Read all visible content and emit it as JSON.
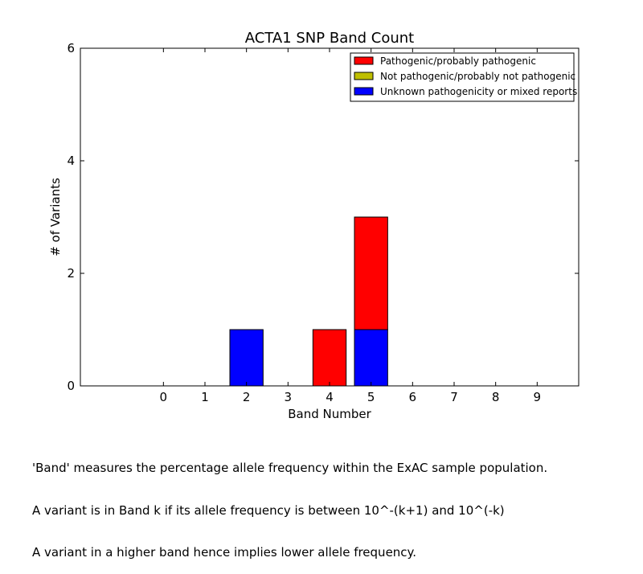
{
  "chart_data": {
    "type": "bar",
    "stacked": true,
    "title": "ACTA1 SNP Band Count",
    "xlabel": "Band Number",
    "ylabel": "# of Variants",
    "categories": [
      "0",
      "1",
      "2",
      "3",
      "4",
      "5",
      "6",
      "7",
      "8",
      "9"
    ],
    "xlim": [
      -2,
      10
    ],
    "ylim": [
      0,
      6
    ],
    "yticks": [
      "0",
      "2",
      "4",
      "6"
    ],
    "grid": false,
    "legend_position": "top-right",
    "series": [
      {
        "name": "Unknown pathogenicity or mixed reports",
        "color": "#0000ff",
        "values": [
          0,
          0,
          1,
          0,
          0,
          1,
          0,
          0,
          0,
          0
        ]
      },
      {
        "name": "Not pathogenic/probably not pathogenic",
        "color": "#bfbf00",
        "values": [
          0,
          0,
          0,
          0,
          0,
          0,
          0,
          0,
          0,
          0
        ]
      },
      {
        "name": "Pathogenic/probably pathogenic",
        "color": "#ff0000",
        "values": [
          0,
          0,
          0,
          0,
          1,
          2,
          0,
          0,
          0,
          0
        ]
      }
    ],
    "legend_order": [
      "Pathogenic/probably pathogenic",
      "Not pathogenic/probably not pathogenic",
      "Unknown pathogenicity or mixed reports"
    ]
  },
  "caption": {
    "lines": [
      "'Band' measures the percentage allele frequency within the ExAC sample population.",
      "A variant is in Band k if its allele frequency is between 10^-(k+1) and 10^(-k)",
      "A variant in a higher band hence implies lower allele frequency."
    ]
  }
}
